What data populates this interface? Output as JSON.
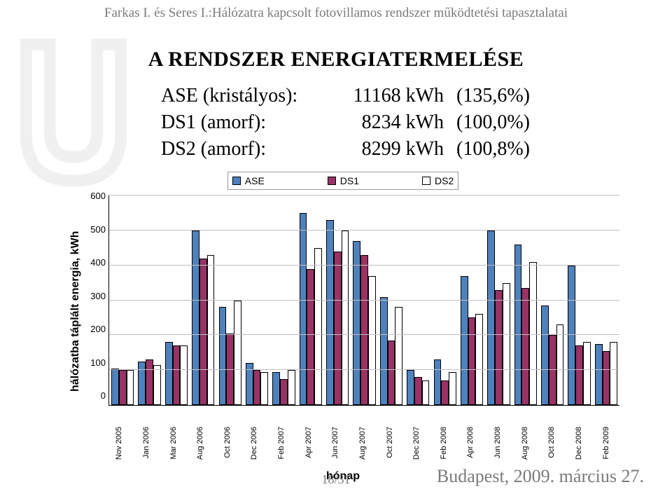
{
  "header": "Farkas I. és Seres I.:Hálózatra kapcsolt fotovillamos rendszer működtetési tapasztalatai",
  "title": "A RENDSZER ENERGIATERMELÉSE",
  "summary": [
    {
      "label": "ASE (kristályos):",
      "value": "11168 kWh",
      "pct": "(135,6%)"
    },
    {
      "label": "DS1 (amorf):",
      "value": "8234 kWh",
      "pct": "(100,0%)"
    },
    {
      "label": "DS2 (amorf):",
      "value": "8299 kWh",
      "pct": "(100,8%)"
    }
  ],
  "chart": {
    "type": "bar",
    "ylabel": "hálózatba táplált energia, kWh",
    "xlabel": "hónap",
    "ylim": [
      0,
      600
    ],
    "ytick_step": 100,
    "yticks": [
      "600",
      "500",
      "400",
      "300",
      "200",
      "100",
      "0"
    ],
    "grid_color": "#bfbfbf",
    "series": [
      {
        "name": "ASE",
        "color": "#4f81bd"
      },
      {
        "name": "DS1",
        "color": "#993366"
      },
      {
        "name": "DS2",
        "color": "#ffffff"
      }
    ],
    "categories": [
      "Nov 2005",
      "Jan 2006",
      "Mar 2006",
      "Aug 2006",
      "Oct 2006",
      "Dec 2006",
      "Feb 2007",
      "Apr 2007",
      "Jun 2007",
      "Aug 2007",
      "Oct 2007",
      "Dec 2007",
      "Feb 2008",
      "Apr 2008",
      "Jun 2008",
      "Aug 2008",
      "Oct 2008",
      "Dec 2008",
      "Feb 2009"
    ],
    "data": {
      "ASE": [
        105,
        125,
        180,
        500,
        280,
        120,
        95,
        550,
        530,
        470,
        310,
        100,
        130,
        370,
        500,
        460,
        285,
        400,
        175
      ],
      "DS1": [
        100,
        130,
        170,
        420,
        205,
        100,
        75,
        390,
        440,
        430,
        185,
        80,
        70,
        250,
        330,
        335,
        200,
        170,
        155
      ],
      "DS2": [
        100,
        115,
        170,
        430,
        300,
        95,
        100,
        450,
        500,
        370,
        280,
        70,
        95,
        260,
        350,
        410,
        230,
        180,
        180
      ]
    }
  },
  "footer": {
    "center": "18/31",
    "right": "Budapest, 2009. március 27."
  }
}
